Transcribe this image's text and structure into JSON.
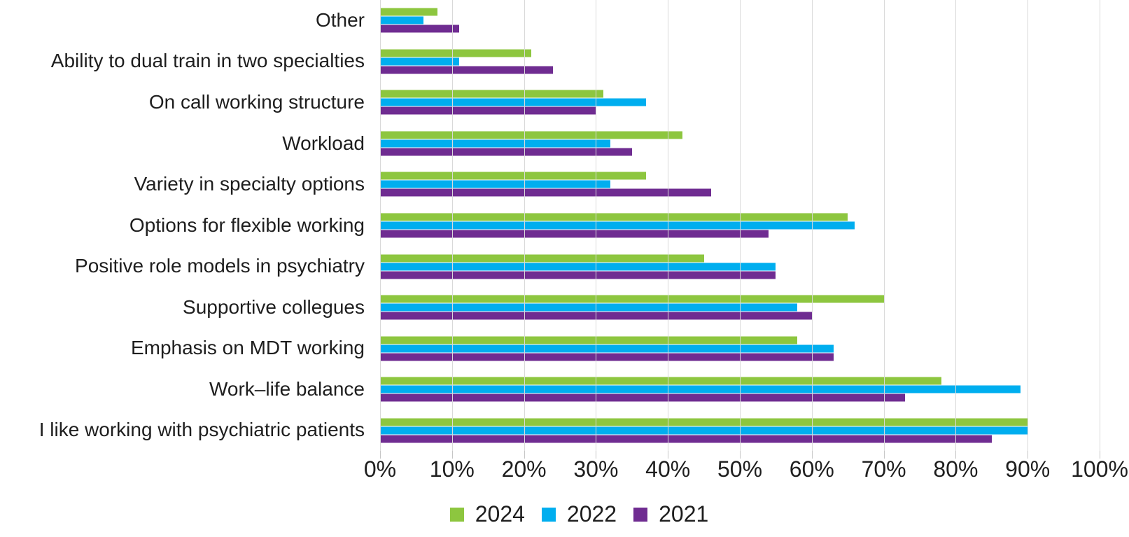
{
  "chart_data": {
    "type": "bar",
    "orientation": "horizontal",
    "title": "",
    "xlabel": "",
    "ylabel": "",
    "xlim": [
      0,
      100
    ],
    "grid": "vertical",
    "legend_position": "bottom",
    "x_ticks": [
      "0%",
      "10%",
      "20%",
      "30%",
      "40%",
      "50%",
      "60%",
      "70%",
      "80%",
      "90%",
      "100%"
    ],
    "categories": [
      "Other",
      "Ability to dual train in two specialties",
      "On call working structure",
      "Workload",
      "Variety in specialty options",
      "Options for flexible working",
      "Positive role models in psychiatry",
      "Supportive collegues",
      "Emphasis on MDT working",
      "Work–life balance",
      "I like working with psychiatric patients"
    ],
    "series": [
      {
        "name": "2024",
        "color": "#8DC63F",
        "values": [
          8,
          21,
          31,
          42,
          37,
          65,
          45,
          70,
          58,
          78,
          90
        ]
      },
      {
        "name": "2022",
        "color": "#00AEEF",
        "values": [
          6,
          11,
          37,
          32,
          32,
          66,
          55,
          58,
          63,
          89,
          90
        ]
      },
      {
        "name": "2021",
        "color": "#6F2C91",
        "values": [
          11,
          24,
          30,
          35,
          46,
          54,
          55,
          60,
          63,
          73,
          85
        ]
      }
    ]
  },
  "colors": {
    "background": "#FFFFFF",
    "gridline": "#D9D9D9",
    "axis_tick": "#C6C6C6",
    "text": "#1E1E1E"
  }
}
